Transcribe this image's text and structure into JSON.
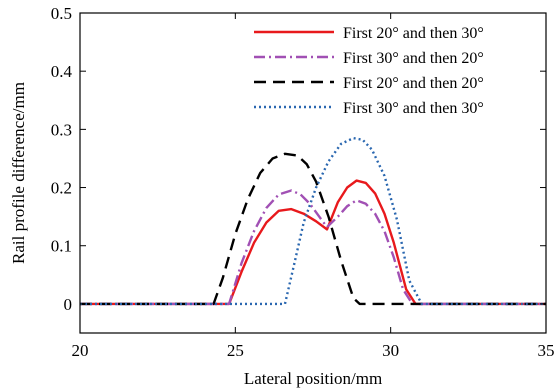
{
  "chart_data": {
    "type": "line",
    "title": "",
    "xlabel": "Lateral position/mm",
    "ylabel": "Rail profile difference/mm",
    "xlim": [
      20,
      35
    ],
    "ylim": [
      -0.05,
      0.5
    ],
    "xticks": [
      20,
      25,
      30,
      35
    ],
    "yticks": [
      0,
      0.1,
      0.2,
      0.3,
      0.4,
      0.5
    ],
    "xtick_labels": [
      "20",
      "25",
      "30",
      "35"
    ],
    "ytick_labels": [
      "0",
      "0.1",
      "0.2",
      "0.3",
      "0.4",
      "0.5"
    ],
    "grid": false,
    "legend_position": "top-right",
    "series": [
      {
        "name": "First 20° and then 30°",
        "color": "#e8191c",
        "dash": "solid",
        "x": [
          20,
          24.8,
          25.2,
          25.6,
          26.0,
          26.4,
          26.8,
          27.2,
          27.6,
          27.95,
          28.3,
          28.6,
          28.9,
          29.2,
          29.5,
          29.8,
          30.1,
          30.5,
          30.8,
          31.2,
          35
        ],
        "y": [
          0,
          0,
          0.055,
          0.105,
          0.14,
          0.16,
          0.163,
          0.155,
          0.142,
          0.128,
          0.175,
          0.2,
          0.212,
          0.208,
          0.19,
          0.155,
          0.105,
          0.025,
          0,
          0,
          0
        ]
      },
      {
        "name": "First 30° and then 20°",
        "color": "#a150b4",
        "dash": "dash-dot",
        "x": [
          20,
          24.8,
          25.2,
          25.6,
          26.0,
          26.4,
          26.8,
          27.1,
          27.4,
          27.7,
          27.95,
          28.3,
          28.6,
          28.9,
          29.2,
          29.5,
          29.8,
          30.1,
          30.4,
          30.7,
          31.2,
          35
        ],
        "y": [
          0,
          0,
          0.07,
          0.125,
          0.165,
          0.188,
          0.195,
          0.188,
          0.172,
          0.15,
          0.132,
          0.15,
          0.168,
          0.178,
          0.172,
          0.155,
          0.125,
          0.08,
          0.025,
          0,
          0,
          0
        ]
      },
      {
        "name": "First 20° and then 20°",
        "color": "#000000",
        "dash": "dashed",
        "x": [
          20,
          24.3,
          24.6,
          25.0,
          25.4,
          25.8,
          26.2,
          26.6,
          27.0,
          27.3,
          27.6,
          28.0,
          28.4,
          28.8,
          29.0,
          29.5,
          35
        ],
        "y": [
          0,
          0,
          0.045,
          0.12,
          0.18,
          0.225,
          0.25,
          0.258,
          0.255,
          0.24,
          0.21,
          0.15,
          0.075,
          0.01,
          0,
          0,
          0
        ]
      },
      {
        "name": "First 30° and then 30°",
        "color": "#2a67b0",
        "dash": "dotted",
        "x": [
          20,
          26.6,
          26.9,
          27.2,
          27.6,
          28.0,
          28.4,
          28.8,
          29.1,
          29.4,
          29.8,
          30.2,
          30.6,
          31.0,
          31.2,
          35
        ],
        "y": [
          0,
          0,
          0.07,
          0.14,
          0.2,
          0.245,
          0.275,
          0.285,
          0.282,
          0.265,
          0.22,
          0.145,
          0.04,
          0,
          0,
          0
        ]
      }
    ]
  }
}
